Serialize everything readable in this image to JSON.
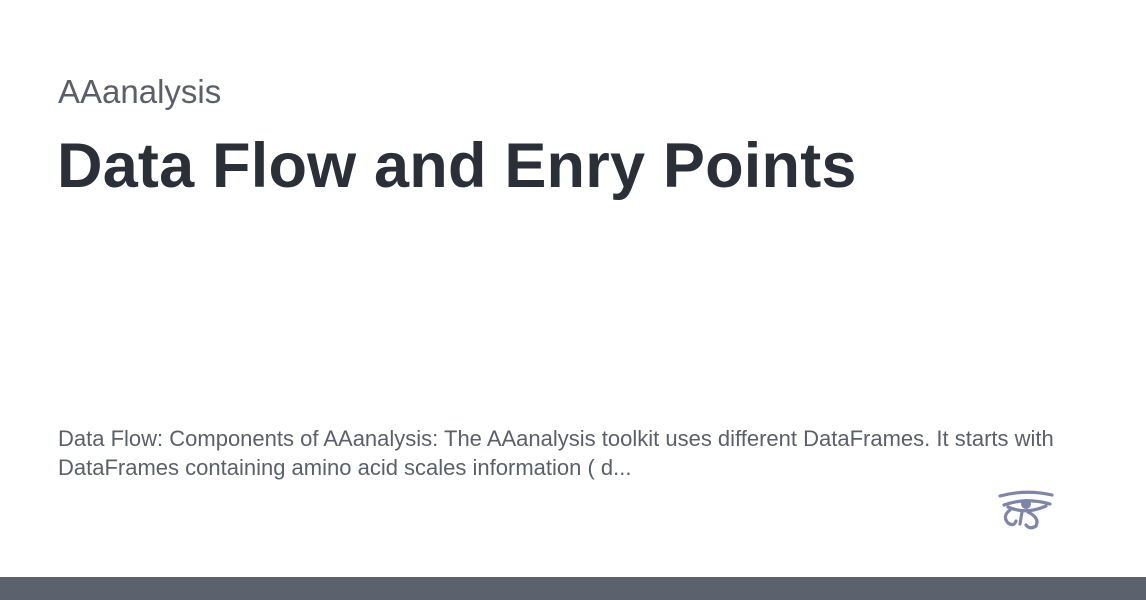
{
  "card": {
    "site_name": "AAanalysis",
    "title": "Data Flow and Enry Points",
    "description": "Data Flow: Components of AAanalysis: The AAanalysis toolkit uses different DataFrames. It starts with DataFrames containing amino acid scales information ( d...",
    "logo_icon": "eye-of-horus-icon"
  },
  "colors": {
    "title": "#2a2f38",
    "text": "#5a5f6a",
    "logo": "#7d86a8",
    "bottom_bar": "#5b616d"
  }
}
